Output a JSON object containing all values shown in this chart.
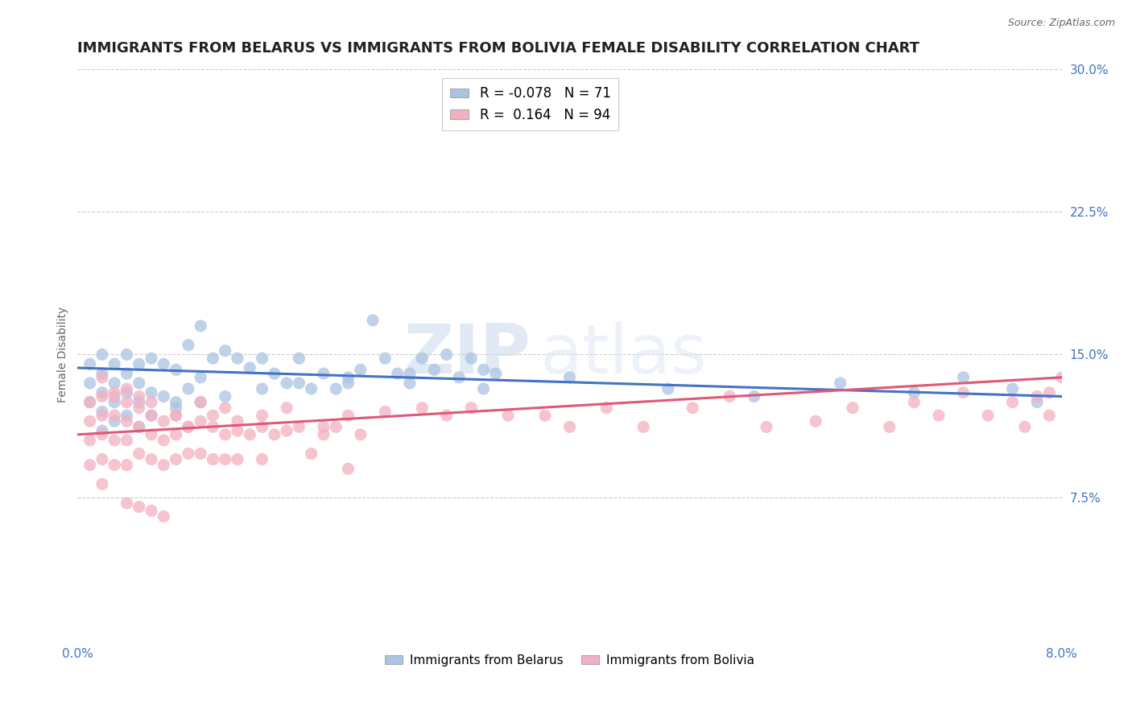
{
  "title": "IMMIGRANTS FROM BELARUS VS IMMIGRANTS FROM BOLIVIA FEMALE DISABILITY CORRELATION CHART",
  "source": "Source: ZipAtlas.com",
  "ylabel": "Female Disability",
  "xlim": [
    0.0,
    0.08
  ],
  "ylim": [
    0.0,
    0.3
  ],
  "xticks": [
    0.0,
    0.01,
    0.02,
    0.03,
    0.04,
    0.05,
    0.06,
    0.07,
    0.08
  ],
  "xticklabels": [
    "0.0%",
    "",
    "",
    "",
    "",
    "",
    "",
    "",
    "8.0%"
  ],
  "yticks": [
    0.0,
    0.075,
    0.15,
    0.225,
    0.3
  ],
  "yticklabels": [
    "",
    "7.5%",
    "15.0%",
    "22.5%",
    "30.0%"
  ],
  "grid_color": "#cccccc",
  "background_color": "#ffffff",
  "series": [
    {
      "name": "Immigrants from Belarus",
      "R": -0.078,
      "N": 71,
      "color": "#aac4e2",
      "line_color": "#4472c4",
      "x": [
        0.001,
        0.001,
        0.001,
        0.002,
        0.002,
        0.002,
        0.002,
        0.003,
        0.003,
        0.003,
        0.004,
        0.004,
        0.004,
        0.005,
        0.005,
        0.005,
        0.006,
        0.006,
        0.007,
        0.007,
        0.008,
        0.008,
        0.009,
        0.009,
        0.01,
        0.01,
        0.011,
        0.012,
        0.013,
        0.014,
        0.015,
        0.016,
        0.017,
        0.018,
        0.019,
        0.02,
        0.021,
        0.022,
        0.023,
        0.024,
        0.025,
        0.026,
        0.027,
        0.028,
        0.029,
        0.03,
        0.031,
        0.032,
        0.033,
        0.034,
        0.002,
        0.003,
        0.004,
        0.005,
        0.006,
        0.008,
        0.01,
        0.012,
        0.015,
        0.018,
        0.022,
        0.027,
        0.033,
        0.04,
        0.048,
        0.055,
        0.062,
        0.068,
        0.072,
        0.076,
        0.078
      ],
      "y": [
        0.145,
        0.135,
        0.125,
        0.15,
        0.14,
        0.13,
        0.12,
        0.145,
        0.135,
        0.125,
        0.15,
        0.14,
        0.13,
        0.145,
        0.135,
        0.125,
        0.148,
        0.13,
        0.145,
        0.128,
        0.142,
        0.125,
        0.155,
        0.132,
        0.165,
        0.138,
        0.148,
        0.152,
        0.148,
        0.143,
        0.148,
        0.14,
        0.135,
        0.148,
        0.132,
        0.14,
        0.132,
        0.135,
        0.142,
        0.168,
        0.148,
        0.14,
        0.135,
        0.148,
        0.142,
        0.15,
        0.138,
        0.148,
        0.132,
        0.14,
        0.11,
        0.115,
        0.118,
        0.112,
        0.118,
        0.122,
        0.125,
        0.128,
        0.132,
        0.135,
        0.138,
        0.14,
        0.142,
        0.138,
        0.132,
        0.128,
        0.135,
        0.13,
        0.138,
        0.132,
        0.125
      ],
      "trend_x": [
        0.0,
        0.08
      ],
      "trend_y": [
        0.143,
        0.128
      ]
    },
    {
      "name": "Immigrants from Bolivia",
      "R": 0.164,
      "N": 94,
      "color": "#f4b0c0",
      "line_color": "#e05878",
      "x": [
        0.001,
        0.001,
        0.001,
        0.001,
        0.002,
        0.002,
        0.002,
        0.002,
        0.002,
        0.003,
        0.003,
        0.003,
        0.003,
        0.004,
        0.004,
        0.004,
        0.004,
        0.005,
        0.005,
        0.005,
        0.006,
        0.006,
        0.006,
        0.007,
        0.007,
        0.007,
        0.008,
        0.008,
        0.008,
        0.009,
        0.009,
        0.01,
        0.01,
        0.011,
        0.011,
        0.012,
        0.012,
        0.013,
        0.013,
        0.014,
        0.015,
        0.015,
        0.016,
        0.017,
        0.018,
        0.019,
        0.02,
        0.021,
        0.022,
        0.023,
        0.002,
        0.003,
        0.004,
        0.005,
        0.006,
        0.008,
        0.009,
        0.01,
        0.011,
        0.012,
        0.013,
        0.015,
        0.017,
        0.02,
        0.022,
        0.025,
        0.028,
        0.03,
        0.032,
        0.035,
        0.038,
        0.04,
        0.043,
        0.046,
        0.05,
        0.053,
        0.056,
        0.06,
        0.063,
        0.066,
        0.068,
        0.07,
        0.072,
        0.074,
        0.076,
        0.077,
        0.078,
        0.079,
        0.079,
        0.08,
        0.004,
        0.005,
        0.006,
        0.007
      ],
      "y": [
        0.125,
        0.115,
        0.105,
        0.092,
        0.128,
        0.118,
        0.108,
        0.095,
        0.082,
        0.128,
        0.118,
        0.105,
        0.092,
        0.125,
        0.115,
        0.105,
        0.092,
        0.122,
        0.112,
        0.098,
        0.118,
        0.108,
        0.095,
        0.115,
        0.105,
        0.092,
        0.118,
        0.108,
        0.095,
        0.112,
        0.098,
        0.115,
        0.098,
        0.112,
        0.095,
        0.108,
        0.095,
        0.11,
        0.095,
        0.108,
        0.112,
        0.095,
        0.108,
        0.11,
        0.112,
        0.098,
        0.108,
        0.112,
        0.09,
        0.108,
        0.138,
        0.13,
        0.132,
        0.128,
        0.125,
        0.118,
        0.112,
        0.125,
        0.118,
        0.122,
        0.115,
        0.118,
        0.122,
        0.112,
        0.118,
        0.12,
        0.122,
        0.118,
        0.122,
        0.118,
        0.118,
        0.112,
        0.122,
        0.112,
        0.122,
        0.128,
        0.112,
        0.115,
        0.122,
        0.112,
        0.125,
        0.118,
        0.13,
        0.118,
        0.125,
        0.112,
        0.128,
        0.118,
        0.13,
        0.138,
        0.072,
        0.07,
        0.068,
        0.065
      ],
      "trend_x": [
        0.0,
        0.08
      ],
      "trend_y": [
        0.108,
        0.138
      ]
    }
  ],
  "legend": {
    "belarus_R": "-0.078",
    "belarus_N": "71",
    "bolivia_R": "0.164",
    "bolivia_N": "94"
  },
  "title_color": "#222222",
  "axis_color": "#4472c4",
  "title_fontsize": 13,
  "label_fontsize": 10,
  "tick_fontsize": 11,
  "watermark_zip": "ZIP",
  "watermark_atlas": "atlas"
}
